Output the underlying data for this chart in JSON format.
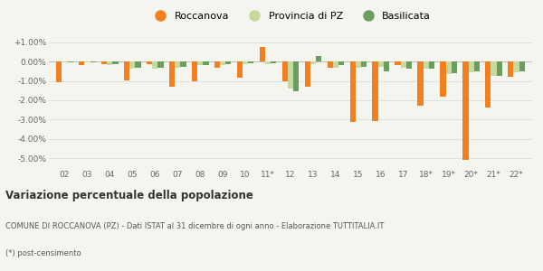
{
  "years": [
    "02",
    "03",
    "04",
    "05",
    "06",
    "07",
    "08",
    "09",
    "10",
    "11*",
    "12",
    "13",
    "14",
    "15",
    "16",
    "17",
    "18*",
    "19*",
    "20*",
    "21*",
    "22*"
  ],
  "roccanova": [
    -1.05,
    -0.2,
    -0.15,
    -0.95,
    -0.15,
    -1.3,
    -1.0,
    -0.3,
    -0.85,
    0.75,
    -1.0,
    -1.3,
    -0.3,
    -3.1,
    -3.05,
    -0.2,
    -2.3,
    -1.8,
    -5.1,
    -2.35,
    -0.8
  ],
  "provincia_pz": [
    -0.05,
    -0.05,
    -0.2,
    -0.35,
    -0.35,
    -0.3,
    -0.2,
    -0.2,
    -0.15,
    -0.15,
    -1.4,
    -0.15,
    -0.3,
    -0.3,
    -0.25,
    -0.3,
    -0.35,
    -0.65,
    -0.55,
    -0.75,
    -0.55
  ],
  "basilicata": [
    -0.05,
    -0.02,
    -0.15,
    -0.3,
    -0.3,
    -0.25,
    -0.2,
    -0.15,
    -0.1,
    -0.1,
    -1.55,
    0.3,
    -0.2,
    -0.25,
    -0.5,
    -0.35,
    -0.35,
    -0.6,
    -0.5,
    -0.75,
    -0.5
  ],
  "color_roccanova": "#f28020",
  "color_provincia": "#c8d9a0",
  "color_basilicata": "#6a9e5e",
  "title": "Variazione percentuale della popolazione",
  "subtitle1": "COMUNE DI ROCCANOVA (PZ) - Dati ISTAT al 31 dicembre di ogni anno - Elaborazione TUTTITALIA.IT",
  "subtitle2": "(*) post-censimento",
  "legend_labels": [
    "Roccanova",
    "Provincia di PZ",
    "Basilicata"
  ],
  "ylim": [
    -5.5,
    1.5
  ],
  "yticks": [
    1.0,
    0.0,
    -1.0,
    -2.0,
    -3.0,
    -4.0,
    -5.0
  ],
  "ytick_labels": [
    "+1.00%",
    "0.00%",
    "-1.00%",
    "-2.00%",
    "-3.00%",
    "-4.00%",
    "-5.00%"
  ],
  "background_color": "#f5f5f0",
  "grid_color": "#e0e0e0"
}
